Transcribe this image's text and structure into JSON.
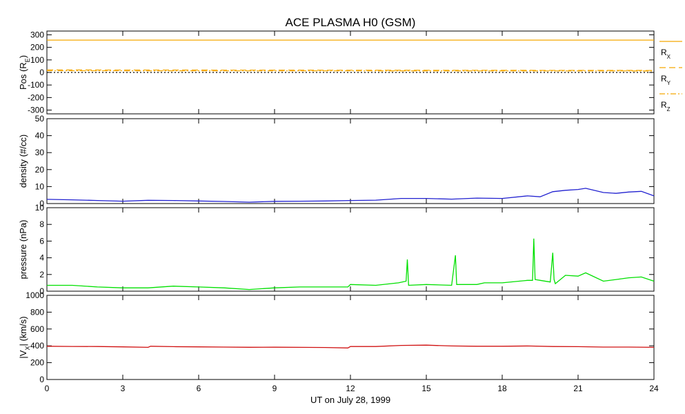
{
  "title": "ACE PLASMA H0 (GSM)",
  "xlabel": "UT on July 28, 1999",
  "xlim": [
    0,
    24
  ],
  "xticks": [
    0,
    3,
    6,
    9,
    12,
    15,
    18,
    21,
    24
  ],
  "chart_data": [
    {
      "type": "line",
      "ylabel": "Pos (R",
      "ylabel_sub": "E",
      "ylabel_tail": ")",
      "ylim": [
        -330,
        330
      ],
      "yticks": [
        300,
        200,
        100,
        0,
        -100,
        -200,
        -300
      ],
      "series": [
        {
          "name": "R",
          "name_sub": "X",
          "color": "#f5a800",
          "style": "solid",
          "x": [
            0,
            24
          ],
          "y": [
            258,
            258
          ]
        },
        {
          "name": "R",
          "name_sub": "Y",
          "color": "#f5a800",
          "style": "dashed",
          "x": [
            0,
            24
          ],
          "y": [
            20,
            16
          ]
        },
        {
          "name": "R",
          "name_sub": "Z",
          "color": "#f5a800",
          "style": "dashdot",
          "x": [
            0,
            24
          ],
          "y": [
            14,
            12
          ]
        },
        {
          "name": "",
          "color": "#000000",
          "style": "dotted",
          "x": [
            0,
            24
          ],
          "y": [
            0,
            0
          ]
        }
      ]
    },
    {
      "type": "line",
      "ylabel": "density (#/cc)",
      "ylim": [
        0,
        50
      ],
      "yticks": [
        0,
        10,
        20,
        30,
        40,
        50
      ],
      "series": [
        {
          "color": "#2020d0",
          "x": [
            0,
            1,
            2,
            3,
            4,
            5,
            6,
            7,
            8,
            9,
            10,
            11,
            12,
            13,
            14,
            15,
            16,
            17,
            18,
            19,
            19.5,
            20,
            20.5,
            21,
            21.3,
            22,
            22.5,
            23,
            23.5,
            24
          ],
          "y": [
            2.5,
            2.2,
            1.8,
            1.4,
            1.9,
            1.8,
            1.5,
            1.2,
            0.8,
            1.3,
            1.4,
            1.5,
            1.8,
            2.0,
            3.0,
            3.0,
            2.6,
            3.2,
            3.0,
            4.5,
            4.0,
            7.0,
            7.8,
            8.3,
            9.0,
            6.5,
            6.0,
            6.8,
            7.2,
            4.5
          ]
        }
      ]
    },
    {
      "type": "line",
      "ylabel": "pressure (nPa)",
      "ylim": [
        0,
        10
      ],
      "yticks": [
        0,
        2,
        4,
        6,
        8,
        10
      ],
      "series": [
        {
          "color": "#00e000",
          "x": [
            0,
            1,
            2,
            3,
            4,
            5,
            6,
            7,
            8,
            9,
            10,
            11,
            11.9,
            12,
            13,
            13.9,
            14.2,
            14.25,
            14.3,
            15,
            16,
            16.15,
            16.2,
            16.25,
            17,
            17.3,
            18,
            19,
            19.2,
            19.25,
            19.3,
            19.5,
            19.9,
            20,
            20.05,
            20.1,
            20.5,
            21,
            21.3,
            22,
            22.5,
            23,
            23.5,
            24
          ],
          "y": [
            0.7,
            0.7,
            0.5,
            0.4,
            0.4,
            0.6,
            0.5,
            0.4,
            0.2,
            0.4,
            0.5,
            0.5,
            0.5,
            0.8,
            0.7,
            1.0,
            1.2,
            3.8,
            0.7,
            0.8,
            0.7,
            4.3,
            0.8,
            0.8,
            0.8,
            1.0,
            1.0,
            1.3,
            1.3,
            6.3,
            1.4,
            1.3,
            1.1,
            4.6,
            1.4,
            0.9,
            1.9,
            1.8,
            2.2,
            1.2,
            1.4,
            1.6,
            1.7,
            1.2
          ]
        }
      ]
    },
    {
      "type": "line",
      "ylabel": "|V",
      "ylabel_sub": "X",
      "ylabel_tail": "| (km/s)",
      "ylim": [
        0,
        1000
      ],
      "yticks": [
        0,
        200,
        400,
        600,
        800,
        1000
      ],
      "series": [
        {
          "color": "#d01010",
          "x": [
            0,
            1,
            2,
            3,
            4,
            4.1,
            5,
            6,
            7,
            8,
            9,
            10,
            11,
            11.9,
            12,
            13,
            14,
            15,
            16,
            17,
            18,
            19,
            20,
            21,
            22,
            23,
            24
          ],
          "y": [
            395,
            393,
            392,
            388,
            382,
            395,
            390,
            388,
            385,
            383,
            384,
            382,
            380,
            375,
            392,
            392,
            405,
            408,
            398,
            395,
            395,
            398,
            392,
            390,
            385,
            385,
            382
          ]
        }
      ]
    }
  ]
}
